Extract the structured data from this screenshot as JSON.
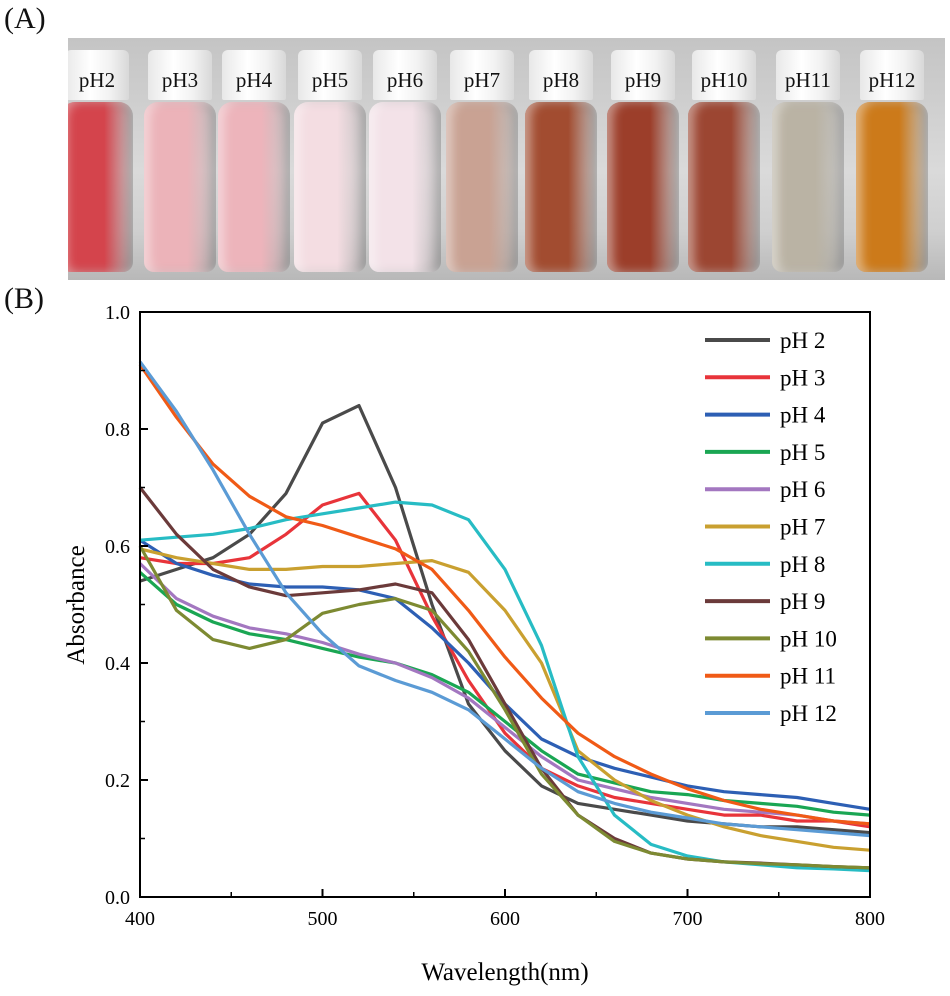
{
  "panels": {
    "a": "(A)",
    "b": "(B)"
  },
  "vials": [
    {
      "label": "pH2",
      "color": "#d4444c"
    },
    {
      "label": "pH3",
      "color": "#ecb3b9"
    },
    {
      "label": "pH4",
      "color": "#edb4bb"
    },
    {
      "label": "pH5",
      "color": "#f4dde2"
    },
    {
      "label": "pH6",
      "color": "#f3e2e8"
    },
    {
      "label": "pH7",
      "color": "#c9a293"
    },
    {
      "label": "pH8",
      "color": "#a24c30"
    },
    {
      "label": "pH9",
      "color": "#9c3e2a"
    },
    {
      "label": "pH10",
      "color": "#9c4632"
    },
    {
      "label": "pH11",
      "color": "#bab3a4"
    },
    {
      "label": "pH12",
      "color": "#cc7a1a"
    }
  ],
  "chart_data": {
    "type": "line",
    "title": "",
    "xlabel": "Wavelength(nm)",
    "ylabel": "Absorbance",
    "xlim": [
      400,
      800
    ],
    "ylim": [
      0,
      1.0
    ],
    "xticks": [
      "400",
      "500",
      "600",
      "700",
      "800"
    ],
    "yticks": [
      "0.0",
      "0.2",
      "0.4",
      "0.6",
      "0.8",
      "1.0"
    ],
    "legend_position": "top-right",
    "x": [
      400,
      420,
      440,
      460,
      480,
      500,
      520,
      540,
      560,
      580,
      600,
      620,
      640,
      660,
      680,
      700,
      720,
      740,
      760,
      780,
      800
    ],
    "series": [
      {
        "name": "pH 2",
        "color": "#4a4a4a",
        "values": [
          0.54,
          0.56,
          0.58,
          0.62,
          0.69,
          0.81,
          0.84,
          0.7,
          0.5,
          0.33,
          0.25,
          0.19,
          0.16,
          0.15,
          0.14,
          0.13,
          0.125,
          0.12,
          0.12,
          0.115,
          0.11
        ]
      },
      {
        "name": "pH 3",
        "color": "#e8343a",
        "values": [
          0.58,
          0.57,
          0.57,
          0.58,
          0.62,
          0.67,
          0.69,
          0.61,
          0.48,
          0.37,
          0.28,
          0.22,
          0.19,
          0.17,
          0.16,
          0.15,
          0.14,
          0.14,
          0.13,
          0.13,
          0.12
        ]
      },
      {
        "name": "pH 4",
        "color": "#2d5fb4",
        "values": [
          0.61,
          0.57,
          0.55,
          0.535,
          0.53,
          0.53,
          0.525,
          0.51,
          0.46,
          0.4,
          0.33,
          0.27,
          0.24,
          0.22,
          0.205,
          0.19,
          0.18,
          0.175,
          0.17,
          0.16,
          0.15
        ]
      },
      {
        "name": "pH 5",
        "color": "#1aa653",
        "values": [
          0.555,
          0.5,
          0.47,
          0.45,
          0.44,
          0.425,
          0.41,
          0.4,
          0.38,
          0.35,
          0.3,
          0.25,
          0.21,
          0.195,
          0.18,
          0.175,
          0.165,
          0.16,
          0.155,
          0.145,
          0.14
        ]
      },
      {
        "name": "pH 6",
        "color": "#a377c0",
        "values": [
          0.57,
          0.51,
          0.48,
          0.46,
          0.45,
          0.435,
          0.415,
          0.4,
          0.375,
          0.34,
          0.29,
          0.24,
          0.2,
          0.185,
          0.17,
          0.16,
          0.15,
          0.145,
          0.14,
          0.13,
          0.125
        ]
      },
      {
        "name": "pH 7",
        "color": "#c9a030",
        "values": [
          0.595,
          0.58,
          0.57,
          0.56,
          0.56,
          0.565,
          0.565,
          0.57,
          0.575,
          0.555,
          0.49,
          0.4,
          0.25,
          0.2,
          0.165,
          0.14,
          0.12,
          0.105,
          0.095,
          0.085,
          0.08
        ]
      },
      {
        "name": "pH 8",
        "color": "#27bcc4",
        "values": [
          0.61,
          0.615,
          0.62,
          0.63,
          0.645,
          0.655,
          0.665,
          0.675,
          0.67,
          0.645,
          0.56,
          0.43,
          0.24,
          0.14,
          0.09,
          0.07,
          0.06,
          0.055,
          0.05,
          0.048,
          0.045
        ]
      },
      {
        "name": "pH 9",
        "color": "#6b3a3a",
        "values": [
          0.7,
          0.62,
          0.56,
          0.53,
          0.515,
          0.52,
          0.525,
          0.535,
          0.52,
          0.44,
          0.33,
          0.22,
          0.14,
          0.1,
          0.075,
          0.065,
          0.06,
          0.058,
          0.055,
          0.052,
          0.05
        ]
      },
      {
        "name": "pH 10",
        "color": "#7d8a32",
        "values": [
          0.6,
          0.49,
          0.44,
          0.425,
          0.44,
          0.485,
          0.5,
          0.51,
          0.49,
          0.42,
          0.32,
          0.21,
          0.14,
          0.095,
          0.075,
          0.065,
          0.06,
          0.057,
          0.055,
          0.052,
          0.05
        ]
      },
      {
        "name": "pH 11",
        "color": "#f05a16",
        "values": [
          0.91,
          0.82,
          0.74,
          0.685,
          0.65,
          0.635,
          0.615,
          0.595,
          0.56,
          0.49,
          0.41,
          0.34,
          0.28,
          0.24,
          0.21,
          0.185,
          0.165,
          0.15,
          0.14,
          0.13,
          0.125
        ]
      },
      {
        "name": "pH 12",
        "color": "#5b9bd5",
        "values": [
          0.915,
          0.83,
          0.73,
          0.62,
          0.52,
          0.45,
          0.395,
          0.37,
          0.35,
          0.32,
          0.27,
          0.22,
          0.18,
          0.16,
          0.145,
          0.135,
          0.125,
          0.12,
          0.115,
          0.11,
          0.105
        ]
      }
    ]
  }
}
